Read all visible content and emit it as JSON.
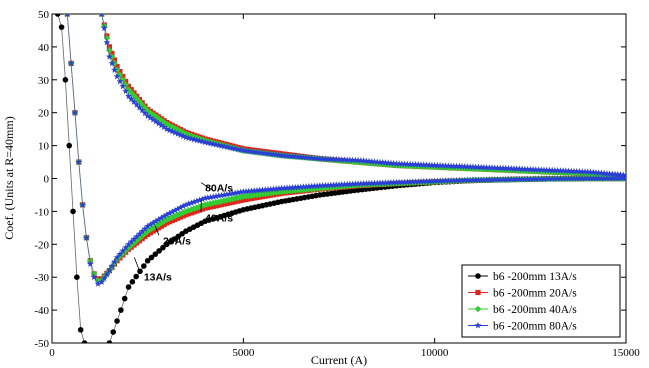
{
  "chart_data": {
    "type": "scatter",
    "title": "",
    "xlabel": "Current (A)",
    "ylabel": "Coef. (Units at R=40mm)",
    "xlim": [
      0,
      15000
    ],
    "ylim": [
      -50,
      50
    ],
    "xticks": [
      0,
      5000,
      10000,
      15000
    ],
    "yticks": [
      -50,
      -40,
      -30,
      -20,
      -10,
      0,
      10,
      20,
      30,
      40,
      50
    ],
    "grid": false,
    "legend_position": "bottom-right",
    "annotations": [
      {
        "text": "80A/s",
        "x": 4000,
        "y": -4
      },
      {
        "text": "40A/s",
        "x": 4000,
        "y": -13
      },
      {
        "text": "20A/s",
        "x": 2900,
        "y": -20
      },
      {
        "text": "13A/s",
        "x": 2400,
        "y": -31
      }
    ],
    "series": [
      {
        "name": "b6 -200mm 13A/s",
        "color": "#000000",
        "marker": "circle",
        "branches": [
          {
            "x": [
              150,
              250,
              350,
              450,
              550,
              650,
              750,
              850
            ],
            "y": [
              50,
              46,
              30,
              10,
              -10,
              -30,
              -46,
              -50
            ]
          },
          {
            "x": [
              1500,
              1800,
              2000,
              2500,
              3000,
              3500,
              4000,
              5000,
              6000,
              7000,
              8000,
              9000,
              10000,
              11000,
              12000,
              13000,
              14000,
              15000
            ],
            "y": [
              -50,
              -40,
              -33,
              -25,
              -20,
              -16,
              -13,
              -9.5,
              -7,
              -5,
              -3.5,
              -2.2,
              -1.2,
              -0.6,
              -0.3,
              -0.1,
              0,
              0
            ]
          }
        ]
      },
      {
        "name": "b6 -200mm 20A/s",
        "color": "#e0251b",
        "marker": "square",
        "branches": [
          {
            "x": [
              400,
              500,
              600,
              700,
              800,
              900,
              1000,
              1100,
              1200,
              1300,
              1500,
              1700,
              2000,
              2500,
              3000,
              3500,
              4000,
              5000,
              6000,
              7000,
              8000,
              9000,
              10000,
              11000,
              12000,
              13000,
              14000,
              15000
            ],
            "y": [
              50,
              35,
              20,
              5,
              -8,
              -18,
              -25,
              -29,
              -30.5,
              -30.5,
              -28,
              -25,
              -21.5,
              -17,
              -13.5,
              -11,
              -9,
              -6.5,
              -4.5,
              -3.2,
              -2.2,
              -1.5,
              -1,
              -0.6,
              -0.3,
              -0.1,
              0,
              0
            ]
          },
          {
            "x": [
              1300,
              1500,
              1700,
              2000,
              2500,
              3000,
              3500,
              4000,
              5000,
              6000,
              7000,
              8000,
              9000,
              10000,
              11000,
              12000,
              13000,
              14000,
              15000
            ],
            "y": [
              50,
              40,
              34,
              28,
              21,
              17,
              14,
              12,
              9,
              7.5,
              6,
              5,
              4,
              3.5,
              3,
              2.5,
              2,
              1.5,
              0.5
            ]
          }
        ]
      },
      {
        "name": "b6 -200mm 40A/s",
        "color": "#33cc33",
        "marker": "diamond",
        "branches": [
          {
            "x": [
              400,
              500,
              600,
              700,
              800,
              900,
              1000,
              1100,
              1200,
              1300,
              1500,
              1700,
              2000,
              2500,
              3000,
              3500,
              4000,
              5000,
              6000,
              7000,
              8000,
              9000,
              10000,
              11000,
              12000,
              13000,
              14000,
              15000
            ],
            "y": [
              50,
              35,
              20,
              5,
              -8,
              -18,
              -25,
              -29,
              -31,
              -31,
              -28,
              -24.5,
              -21,
              -16,
              -12.5,
              -10,
              -8,
              -5.5,
              -4,
              -3,
              -2,
              -1.5,
              -1,
              -0.5,
              -0.3,
              -0.1,
              0,
              0
            ]
          },
          {
            "x": [
              1300,
              1500,
              1700,
              2000,
              2500,
              3000,
              3500,
              4000,
              5000,
              6000,
              7000,
              8000,
              9000,
              10000,
              11000,
              12000,
              13000,
              14000,
              15000
            ],
            "y": [
              50,
              39,
              33,
              27,
              20.5,
              16.5,
              13.5,
              11.5,
              8.5,
              7,
              6,
              5,
              4,
              3.5,
              3,
              2.5,
              2,
              1.5,
              0.5
            ]
          }
        ]
      },
      {
        "name": "b6 -200mm 80A/s",
        "color": "#2b3fd6",
        "marker": "star",
        "branches": [
          {
            "x": [
              400,
              500,
              600,
              700,
              800,
              900,
              1000,
              1100,
              1200,
              1300,
              1500,
              1700,
              2000,
              2500,
              3000,
              3500,
              4000,
              5000,
              6000,
              7000,
              8000,
              9000,
              10000,
              11000,
              12000,
              13000,
              14000,
              15000
            ],
            "y": [
              50,
              35,
              20,
              5,
              -8,
              -18,
              -26,
              -30,
              -32,
              -31.5,
              -28,
              -24,
              -20,
              -14.5,
              -11,
              -8,
              -6,
              -4,
              -3,
              -2.2,
              -1.6,
              -1.2,
              -0.8,
              -0.5,
              -0.3,
              -0.1,
              0,
              0
            ]
          },
          {
            "x": [
              1300,
              1500,
              1700,
              2000,
              2500,
              3000,
              3500,
              4000,
              5000,
              6000,
              7000,
              8000,
              9000,
              10000,
              11000,
              12000,
              13000,
              14000,
              15000
            ],
            "y": [
              50,
              37,
              31,
              25,
              19,
              15,
              12.5,
              11,
              8.5,
              7,
              6,
              5.5,
              4.5,
              4,
              3.5,
              3,
              2.5,
              2,
              1
            ]
          }
        ]
      }
    ]
  }
}
